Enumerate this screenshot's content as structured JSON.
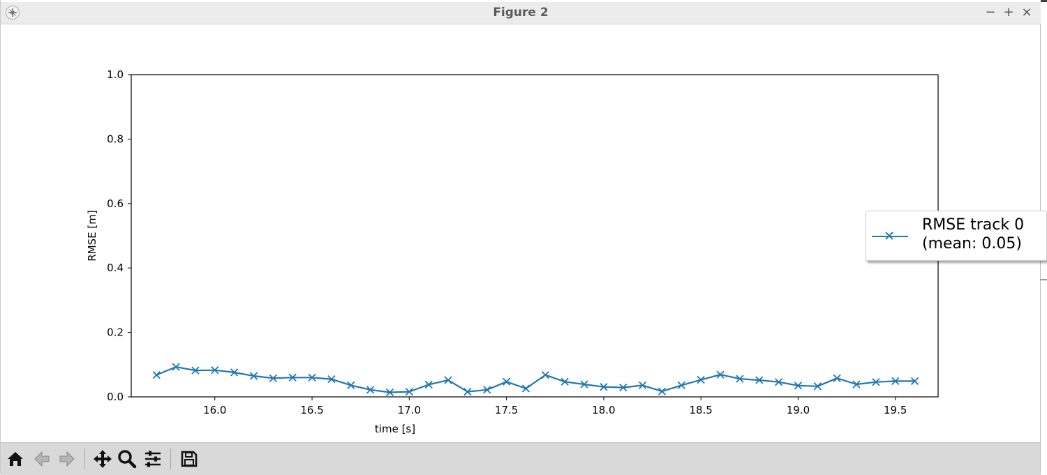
{
  "window": {
    "title": "Figure 2",
    "controls": [
      "−",
      "+",
      "×"
    ]
  },
  "toolbar": {
    "buttons": [
      "home-icon",
      "back-arrow-icon",
      "forward-arrow-icon",
      "pan-icon",
      "zoom-icon",
      "configure-subplots-icon",
      "save-icon"
    ]
  },
  "colors": {
    "series": "#1f77b4",
    "toolbar_bg": "#d9d9d9",
    "titlebar_bg": "#ececec"
  },
  "chart_data": {
    "type": "line",
    "title": "",
    "xlabel": "time [s]",
    "ylabel": "RMSE [m]",
    "xlim": [
      15.57,
      19.72
    ],
    "ylim": [
      0.0,
      1.0
    ],
    "xticks": [
      "16.0",
      "16.5",
      "17.0",
      "17.5",
      "18.0",
      "18.5",
      "19.0",
      "19.5"
    ],
    "xtick_values": [
      16.0,
      16.5,
      17.0,
      17.5,
      18.0,
      18.5,
      19.0,
      19.5
    ],
    "yticks": [
      "0.0",
      "0.2",
      "0.4",
      "0.6",
      "0.8",
      "1.0"
    ],
    "ytick_values": [
      0.0,
      0.2,
      0.4,
      0.6,
      0.8,
      1.0
    ],
    "grid": false,
    "legend_position": "center-right",
    "legend": {
      "line1": "RMSE track 0",
      "line2": "(mean: 0.05)"
    },
    "series": [
      {
        "marker": "x",
        "x": [
          15.7,
          15.8,
          15.9,
          16.0,
          16.1,
          16.2,
          16.3,
          16.4,
          16.5,
          16.6,
          16.7,
          16.8,
          16.9,
          17.0,
          17.1,
          17.2,
          17.3,
          17.4,
          17.5,
          17.6,
          17.7,
          17.8,
          17.9,
          18.0,
          18.1,
          18.2,
          18.3,
          18.4,
          18.5,
          18.6,
          18.7,
          18.8,
          18.9,
          19.0,
          19.1,
          19.2,
          19.3,
          19.4,
          19.5,
          19.6
        ],
        "y": [
          0.068,
          0.093,
          0.082,
          0.083,
          0.076,
          0.065,
          0.058,
          0.06,
          0.06,
          0.055,
          0.036,
          0.022,
          0.014,
          0.016,
          0.038,
          0.052,
          0.016,
          0.022,
          0.047,
          0.026,
          0.068,
          0.047,
          0.039,
          0.031,
          0.029,
          0.036,
          0.017,
          0.036,
          0.053,
          0.069,
          0.056,
          0.052,
          0.046,
          0.035,
          0.033,
          0.058,
          0.039,
          0.046,
          0.049,
          0.049
        ]
      }
    ]
  }
}
